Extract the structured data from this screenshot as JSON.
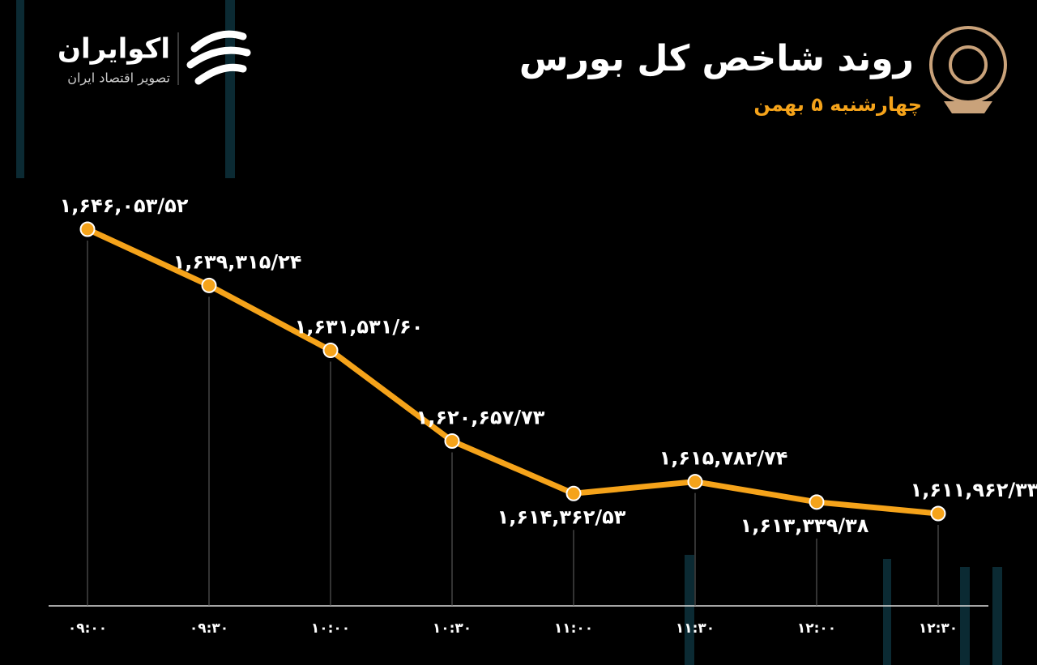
{
  "brand": {
    "name": "اکوایران",
    "tagline": "تصویر اقتصاد ایران"
  },
  "chart_data": {
    "type": "line",
    "title": "روند شاخص کل بورس",
    "subtitle": "چهارشنبه ۵ بهمن",
    "categories": [
      "۰۹:۰۰",
      "۰۹:۳۰",
      "۱۰:۰۰",
      "۱۰:۳۰",
      "۱۱:۰۰",
      "۱۱:۳۰",
      "۱۲:۰۰",
      "۱۲:۳۰"
    ],
    "values": [
      1646053.52,
      1639315.24,
      1631531.6,
      1620657.73,
      1614362.53,
      1615782.74,
      1613339.38,
      1611962.33
    ],
    "value_labels": [
      "۱,۶۴۶,۰۵۳/۵۲",
      "۱,۶۳۹,۳۱۵/۲۴",
      "۱,۶۳۱,۵۳۱/۶۰",
      "۱,۶۲۰,۶۵۷/۷۳",
      "۱,۶۱۴,۳۶۲/۵۳",
      "۱,۶۱۵,۷۸۲/۷۴",
      "۱,۶۱۳,۳۳۹/۳۸",
      "۱,۶۱۱,۹۶۲/۳۳"
    ],
    "color": "#f5a31a"
  }
}
